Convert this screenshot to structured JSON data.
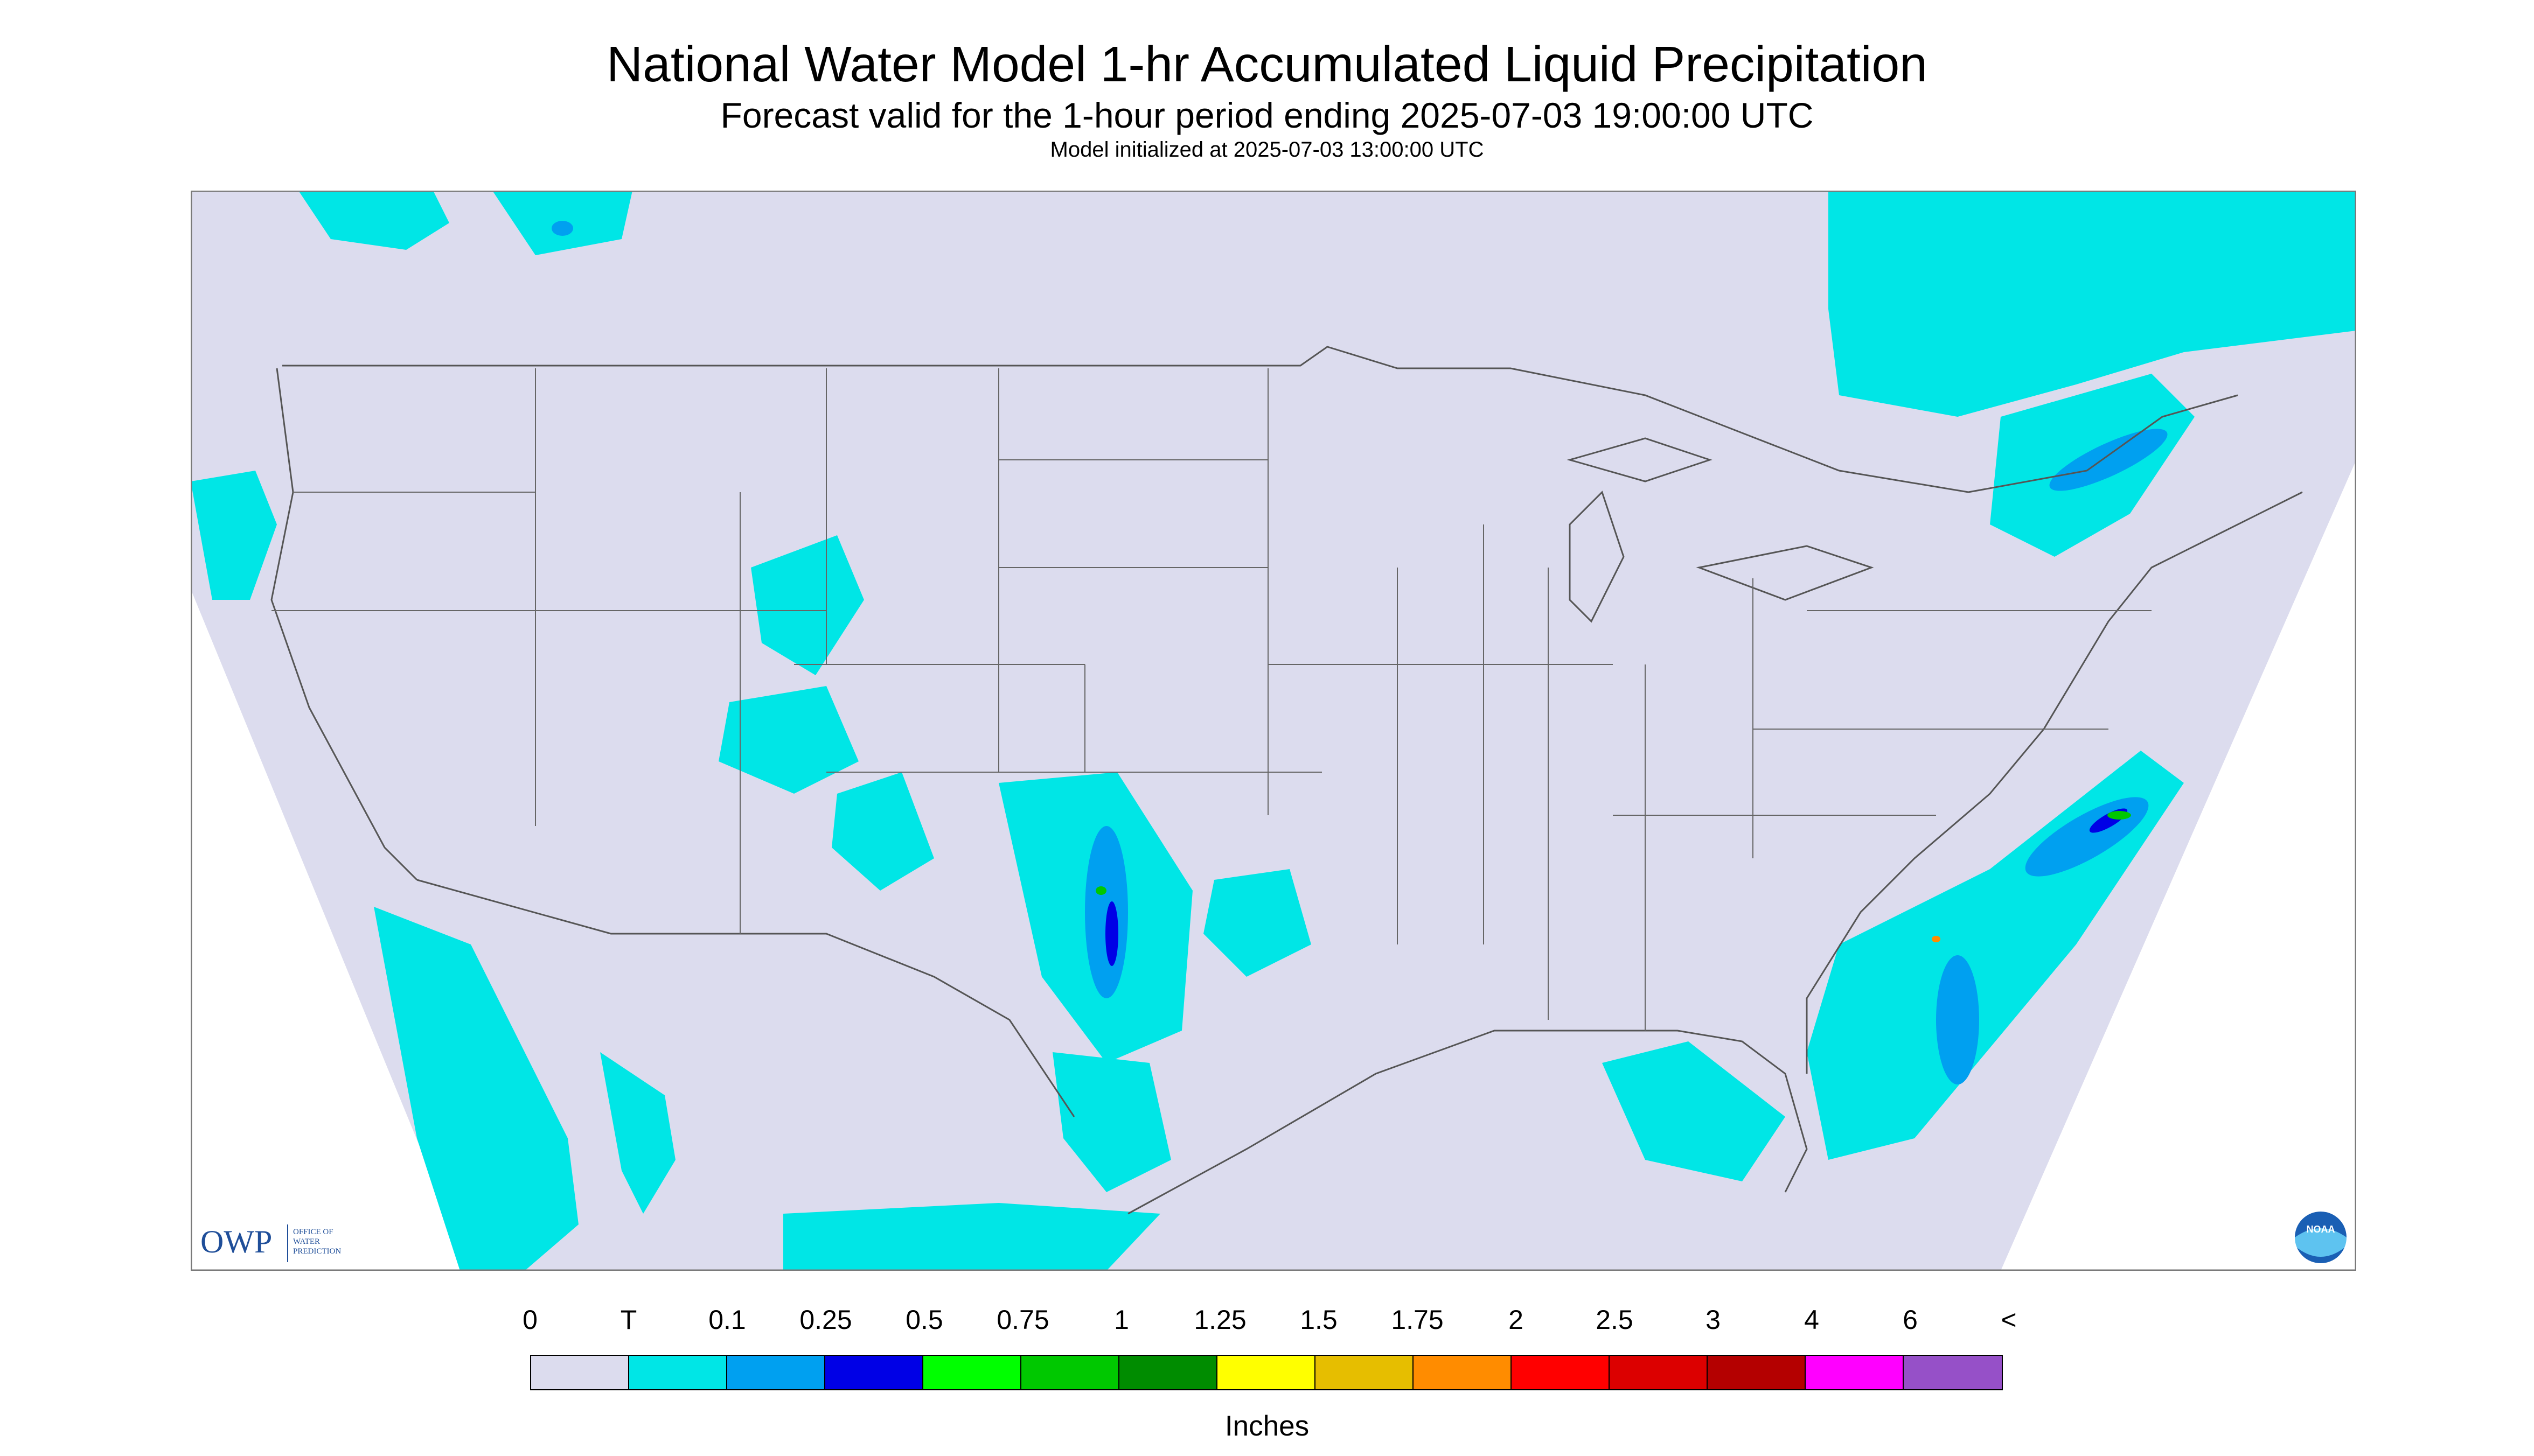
{
  "header": {
    "title": "National Water Model 1-hr Accumulated Liquid Precipitation",
    "subtitle": "Forecast valid for the 1-hour period ending 2025-07-03 19:00:00 UTC",
    "init": "Model initialized at 2025-07-03 13:00:00 UTC"
  },
  "map": {
    "background": "#dcdcee",
    "border_color": "#7a7a7a",
    "boundary_color": "#555555",
    "logo_owp": {
      "mark": "OWP",
      "text": "OFFICE OF WATER PREDICTION"
    },
    "logo_noaa": {
      "mark": "NOAA"
    }
  },
  "legend": {
    "units": "Inches",
    "tick_labels": [
      "0",
      "T",
      "0.1",
      "0.25",
      "0.5",
      "0.75",
      "1",
      "1.25",
      "1.5",
      "1.75",
      "2",
      "2.5",
      "3",
      "4",
      "6",
      "<"
    ],
    "colors": [
      "#dcdcee",
      "#00e6e6",
      "#00a0f0",
      "#0000e6",
      "#00ff00",
      "#00c800",
      "#008c00",
      "#ffff00",
      "#e6be00",
      "#ff8c00",
      "#ff0000",
      "#dc0000",
      "#b40000",
      "#ff00ff",
      "#9650c8"
    ]
  }
}
